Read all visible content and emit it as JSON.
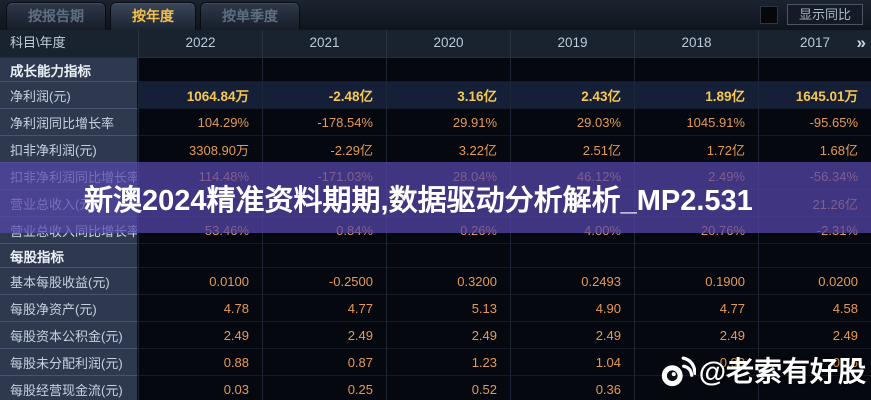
{
  "tabs": [
    {
      "label": "按报告期",
      "active": false
    },
    {
      "label": "按年度",
      "active": true
    },
    {
      "label": "按单季度",
      "active": false
    }
  ],
  "toolbar": {
    "yoy_label": "显示同比",
    "checkbox_state": "unchecked"
  },
  "table": {
    "corner_label": "科目\\年度",
    "years": [
      "2022",
      "2021",
      "2020",
      "2019",
      "2018",
      "2017"
    ],
    "more_label": "»",
    "sections": [
      {
        "title": "成长能力指标",
        "rows": [
          {
            "label": "净利润(元)",
            "highlight": true,
            "values": [
              "1064.84万",
              "-2.48亿",
              "3.16亿",
              "2.43亿",
              "1.89亿",
              "1645.01万"
            ]
          },
          {
            "label": "净利润同比增长率",
            "values": [
              "104.29%",
              "-178.54%",
              "29.91%",
              "29.03%",
              "1045.91%",
              "-95.65%"
            ]
          },
          {
            "label": "扣非净利润(元)",
            "values": [
              "3308.90万",
              "-2.29亿",
              "3.22亿",
              "2.51亿",
              "1.72亿",
              "1.68亿"
            ]
          },
          {
            "label": "扣非净利润同比增长率",
            "values": [
              "114.48%",
              "-171.03%",
              "28.04%",
              "46.12%",
              "2.49%",
              "-56.34%"
            ]
          },
          {
            "label": "营业总收入(元)",
            "values": [
              "",
              "",
              "",
              "",
              "",
              "21.26亿"
            ]
          },
          {
            "label": "营业总收入同比增长率",
            "values": [
              "53.46%",
              "0.84%",
              "0.26%",
              "4.00%",
              "20.76%",
              "-2.31%"
            ]
          }
        ]
      },
      {
        "title": "每股指标",
        "rows": [
          {
            "label": "基本每股收益(元)",
            "values": [
              "0.0100",
              "-0.2500",
              "0.3200",
              "0.2493",
              "0.1900",
              "0.0200"
            ]
          },
          {
            "label": "每股净资产(元)",
            "values": [
              "4.78",
              "4.77",
              "5.13",
              "4.90",
              "4.77",
              "4.58"
            ]
          },
          {
            "label": "每股资本公积金(元)",
            "values": [
              "2.49",
              "2.49",
              "2.49",
              "2.49",
              "2.49",
              "2.49"
            ]
          },
          {
            "label": "每股未分配利润(元)",
            "values": [
              "0.88",
              "0.87",
              "1.23",
              "1.04",
              "0.93",
              "0.76"
            ]
          },
          {
            "label": "每股经营现金流(元)",
            "values": [
              "0.03",
              "0.25",
              "0.52",
              "0.36",
              "",
              ""
            ]
          }
        ]
      }
    ]
  },
  "watermarks": {
    "banner_text": "新澳2024精准资料期期,数据驱动分析解析_MP2.531",
    "credit_text": "@老索有好股",
    "credit_icon": "weibo-eye"
  },
  "colors": {
    "accent_gold": "#f2bf4a",
    "value_orange": "#e59a52",
    "highlight_row_bg": "#152038",
    "label_column_bg": "#2e3950",
    "banner_purple": "#5646ac",
    "header_bg": "#19222f"
  }
}
